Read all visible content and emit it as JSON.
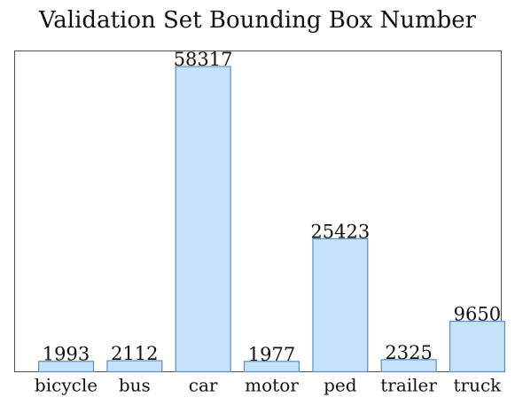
{
  "chart_data": {
    "type": "bar",
    "title": "Validation Set Bounding Box Number",
    "xlabel": "",
    "ylabel": "",
    "categories": [
      "bicycle",
      "bus",
      "car",
      "motor",
      "ped",
      "trailer",
      "truck"
    ],
    "values": [
      1993,
      2112,
      58317,
      1977,
      25423,
      2325,
      9650
    ],
    "data_labels": [
      "1993",
      "2112",
      "58317",
      "1977",
      "25423",
      "2325",
      "9650"
    ],
    "ylim": [
      0,
      61300
    ],
    "grid": false,
    "legend": "none",
    "bar_color": "#c6e2fb",
    "bar_edge_color": "#5b8fc7"
  }
}
